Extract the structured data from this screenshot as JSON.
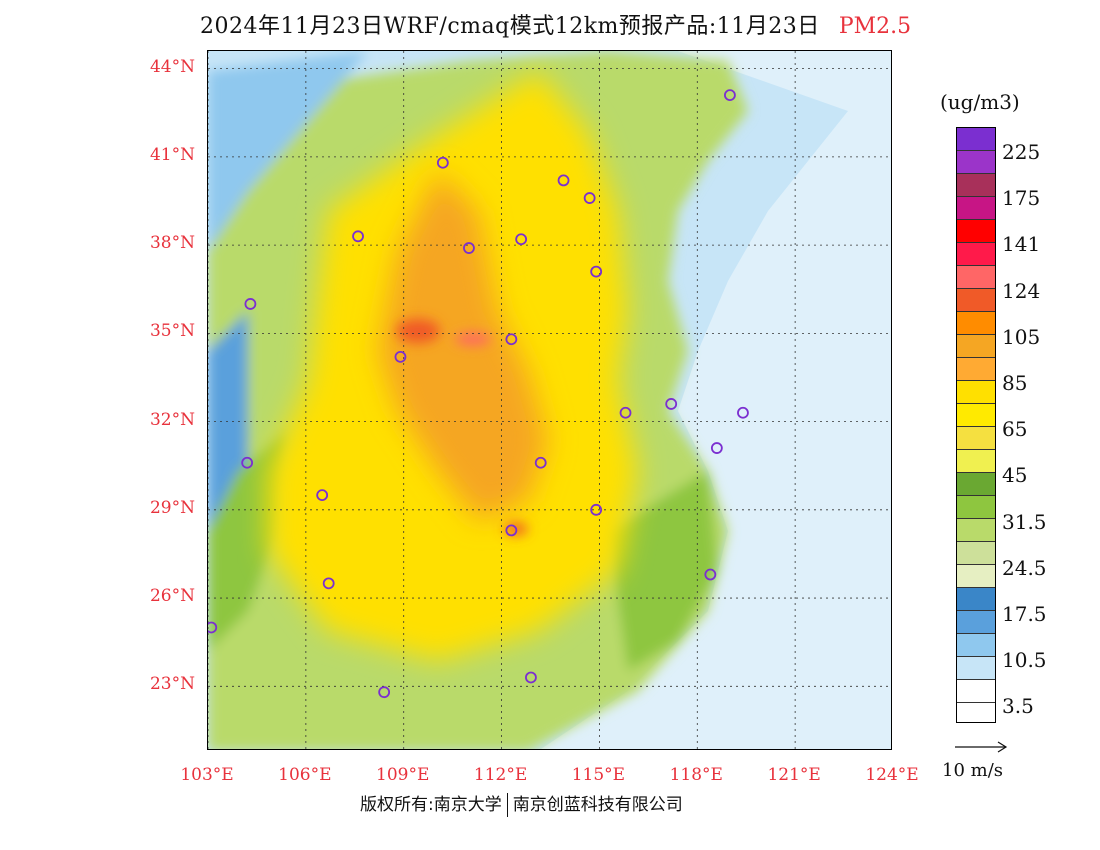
{
  "title": {
    "main": "2024年11月23日WRF/cmaq模式12km预报产品:11月23日",
    "product": "PM2.5"
  },
  "map": {
    "lat_labels": [
      "44°N",
      "41°N",
      "38°N",
      "35°N",
      "32°N",
      "29°N",
      "26°N",
      "23°N"
    ],
    "lon_labels": [
      "103°E",
      "106°E",
      "109°E",
      "112°E",
      "115°E",
      "118°E",
      "121°E",
      "124°E"
    ],
    "lon_range": [
      103,
      124
    ],
    "lat_range": [
      20.8,
      44.6
    ]
  },
  "legend": {
    "unit": "(ug/m3)",
    "labels": [
      "225",
      "175",
      "141",
      "124",
      "105",
      "85",
      "65",
      "45",
      "31.5",
      "24.5",
      "17.5",
      "10.5",
      "3.5"
    ],
    "colors": [
      "#7b2fd0",
      "#9b34c9",
      "#a8305a",
      "#c71585",
      "#ff0000",
      "#ff1a4a",
      "#ff6666",
      "#f05a28",
      "#ff8c00",
      "#f5a623",
      "#ffaa33",
      "#ffe000",
      "#ffea00",
      "#f5e040",
      "#f0f050",
      "#6aa832",
      "#8ec63f",
      "#b9da6a",
      "#cde09a",
      "#e6efc2",
      "#3a86c8",
      "#5aa0dc",
      "#8fc8ee",
      "#c7e5f7",
      "#ffffff"
    ]
  },
  "wind_reference": {
    "label": "10 m/s"
  },
  "copyright": {
    "left": "版权所有:南京大学",
    "right": "南京创蓝科技有限公司"
  },
  "city_markers": [
    {
      "lon": 119.0,
      "lat": 43.1
    },
    {
      "lon": 110.2,
      "lat": 40.8
    },
    {
      "lon": 113.9,
      "lat": 40.2
    },
    {
      "lon": 114.7,
      "lat": 39.6
    },
    {
      "lon": 107.6,
      "lat": 38.3
    },
    {
      "lon": 111.0,
      "lat": 37.9
    },
    {
      "lon": 112.6,
      "lat": 38.2
    },
    {
      "lon": 114.9,
      "lat": 37.1
    },
    {
      "lon": 104.3,
      "lat": 36.0
    },
    {
      "lon": 108.9,
      "lat": 34.2
    },
    {
      "lon": 112.3,
      "lat": 34.8
    },
    {
      "lon": 117.2,
      "lat": 32.6
    },
    {
      "lon": 115.8,
      "lat": 32.3
    },
    {
      "lon": 119.4,
      "lat": 32.3
    },
    {
      "lon": 118.6,
      "lat": 31.1
    },
    {
      "lon": 104.2,
      "lat": 30.6
    },
    {
      "lon": 113.2,
      "lat": 30.6
    },
    {
      "lon": 106.5,
      "lat": 29.5
    },
    {
      "lon": 114.9,
      "lat": 29.0
    },
    {
      "lon": 112.3,
      "lat": 28.3
    },
    {
      "lon": 118.4,
      "lat": 26.8
    },
    {
      "lon": 106.7,
      "lat": 26.5
    },
    {
      "lon": 103.1,
      "lat": 25.0
    },
    {
      "lon": 112.9,
      "lat": 23.3
    },
    {
      "lon": 108.4,
      "lat": 22.8
    }
  ]
}
